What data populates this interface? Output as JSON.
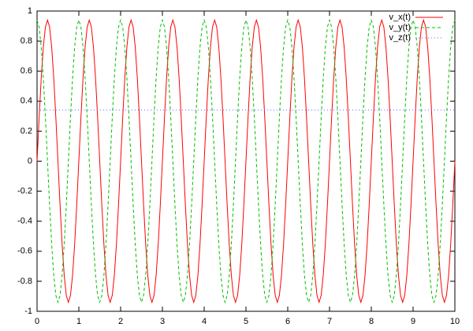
{
  "chart_data": {
    "type": "line",
    "x": [
      0,
      0.05,
      0.1,
      0.15,
      0.2,
      0.25,
      0.3,
      0.35,
      0.4,
      0.45,
      0.5,
      0.55,
      0.6,
      0.65,
      0.7,
      0.75,
      0.8,
      0.85,
      0.9,
      0.95,
      1,
      1.05,
      1.1,
      1.15,
      1.2,
      1.25,
      1.3,
      1.35,
      1.4,
      1.45,
      1.5,
      1.55,
      1.6,
      1.65,
      1.7,
      1.75,
      1.8,
      1.85,
      1.9,
      1.95,
      2,
      2.05,
      2.1,
      2.15,
      2.2,
      2.25,
      2.3,
      2.35,
      2.4,
      2.45,
      2.5,
      2.55,
      2.6,
      2.65,
      2.7,
      2.75,
      2.8,
      2.85,
      2.9,
      2.95,
      3,
      3.05,
      3.1,
      3.15,
      3.2,
      3.25,
      3.3,
      3.35,
      3.4,
      3.45,
      3.5,
      3.55,
      3.6,
      3.65,
      3.7,
      3.75,
      3.8,
      3.85,
      3.9,
      3.95,
      4,
      4.05,
      4.1,
      4.15,
      4.2,
      4.25,
      4.3,
      4.35,
      4.4,
      4.45,
      4.5,
      4.55,
      4.6,
      4.65,
      4.7,
      4.75,
      4.8,
      4.85,
      4.9,
      4.95,
      5,
      5.05,
      5.1,
      5.15,
      5.2,
      5.25,
      5.3,
      5.35,
      5.4,
      5.45,
      5.5,
      5.55,
      5.6,
      5.65,
      5.7,
      5.75,
      5.8,
      5.85,
      5.9,
      5.95,
      6,
      6.05,
      6.1,
      6.15,
      6.2,
      6.25,
      6.3,
      6.35,
      6.4,
      6.45,
      6.5,
      6.55,
      6.6,
      6.65,
      6.7,
      6.75,
      6.8,
      6.85,
      6.9,
      6.95,
      7,
      7.05,
      7.1,
      7.15,
      7.2,
      7.25,
      7.3,
      7.35,
      7.4,
      7.45,
      7.5,
      7.55,
      7.6,
      7.65,
      7.7,
      7.75,
      7.8,
      7.85,
      7.9,
      7.95,
      8,
      8.05,
      8.1,
      8.15,
      8.2,
      8.25,
      8.3,
      8.35,
      8.4,
      8.45,
      8.5,
      8.55,
      8.6,
      8.65,
      8.7,
      8.75,
      8.8,
      8.85,
      8.9,
      8.95,
      9,
      9.05,
      9.1,
      9.15,
      9.2,
      9.25,
      9.3,
      9.35,
      9.4,
      9.45,
      9.5,
      9.55,
      9.6,
      9.65,
      9.7,
      9.75,
      9.8,
      9.85,
      9.9,
      9.95,
      10
    ],
    "series": [
      {
        "name": "v_x(t)",
        "color": "#ff0000",
        "values": [
          0,
          0.29,
          0.553,
          0.76,
          0.894,
          0.94,
          0.894,
          0.76,
          0.553,
          0.29,
          0,
          -0.29,
          -0.553,
          -0.76,
          -0.894,
          -0.94,
          -0.894,
          -0.76,
          -0.553,
          -0.29,
          0,
          0.29,
          0.553,
          0.76,
          0.894,
          0.94,
          0.894,
          0.76,
          0.553,
          0.29,
          0,
          -0.29,
          -0.553,
          -0.76,
          -0.894,
          -0.94,
          -0.894,
          -0.76,
          -0.553,
          -0.29,
          0,
          0.29,
          0.553,
          0.76,
          0.894,
          0.94,
          0.894,
          0.76,
          0.553,
          0.29,
          0,
          -0.29,
          -0.553,
          -0.76,
          -0.894,
          -0.94,
          -0.894,
          -0.76,
          -0.553,
          -0.29,
          0,
          0.29,
          0.553,
          0.76,
          0.894,
          0.94,
          0.894,
          0.76,
          0.553,
          0.29,
          0,
          -0.29,
          -0.553,
          -0.76,
          -0.894,
          -0.94,
          -0.894,
          -0.76,
          -0.553,
          -0.29,
          0,
          0.29,
          0.553,
          0.76,
          0.894,
          0.94,
          0.894,
          0.76,
          0.553,
          0.29,
          0,
          -0.29,
          -0.553,
          -0.76,
          -0.894,
          -0.94,
          -0.894,
          -0.76,
          -0.553,
          -0.29,
          0,
          0.29,
          0.553,
          0.76,
          0.894,
          0.94,
          0.894,
          0.76,
          0.553,
          0.29,
          0,
          -0.29,
          -0.553,
          -0.76,
          -0.894,
          -0.94,
          -0.894,
          -0.76,
          -0.553,
          -0.29,
          0,
          0.29,
          0.553,
          0.76,
          0.894,
          0.94,
          0.894,
          0.76,
          0.553,
          0.29,
          0,
          -0.29,
          -0.553,
          -0.76,
          -0.894,
          -0.94,
          -0.894,
          -0.76,
          -0.553,
          -0.29,
          0,
          0.29,
          0.553,
          0.76,
          0.894,
          0.94,
          0.894,
          0.76,
          0.553,
          0.29,
          0,
          -0.29,
          -0.553,
          -0.76,
          -0.894,
          -0.94,
          -0.894,
          -0.76,
          -0.553,
          -0.29,
          0,
          0.29,
          0.553,
          0.76,
          0.894,
          0.94,
          0.894,
          0.76,
          0.553,
          0.29,
          0,
          -0.29,
          -0.553,
          -0.76,
          -0.894,
          -0.94,
          -0.894,
          -0.76,
          -0.553,
          -0.29,
          0,
          0.29,
          0.553,
          0.76,
          0.894,
          0.94,
          0.894,
          0.76,
          0.553,
          0.29,
          0,
          -0.29,
          -0.553,
          -0.76,
          -0.894,
          -0.94,
          -0.894,
          -0.76,
          -0.553,
          -0.29,
          0
        ]
      },
      {
        "name": "v_y(t)",
        "color": "#00c000",
        "values": [
          0.94,
          0.894,
          0.76,
          0.553,
          0.29,
          0,
          -0.29,
          -0.553,
          -0.76,
          -0.894,
          -0.94,
          -0.894,
          -0.76,
          -0.553,
          -0.29,
          0,
          0.29,
          0.553,
          0.76,
          0.894,
          0.94,
          0.894,
          0.76,
          0.553,
          0.29,
          0,
          -0.29,
          -0.553,
          -0.76,
          -0.894,
          -0.94,
          -0.894,
          -0.76,
          -0.553,
          -0.29,
          0,
          0.29,
          0.553,
          0.76,
          0.894,
          0.94,
          0.894,
          0.76,
          0.553,
          0.29,
          0,
          -0.29,
          -0.553,
          -0.76,
          -0.894,
          -0.94,
          -0.894,
          -0.76,
          -0.553,
          -0.29,
          0,
          0.29,
          0.553,
          0.76,
          0.894,
          0.94,
          0.894,
          0.76,
          0.553,
          0.29,
          0,
          -0.29,
          -0.553,
          -0.76,
          -0.894,
          -0.94,
          -0.894,
          -0.76,
          -0.553,
          -0.29,
          0,
          0.29,
          0.553,
          0.76,
          0.894,
          0.94,
          0.894,
          0.76,
          0.553,
          0.29,
          0,
          -0.29,
          -0.553,
          -0.76,
          -0.894,
          -0.94,
          -0.894,
          -0.76,
          -0.553,
          -0.29,
          0,
          0.29,
          0.553,
          0.76,
          0.894,
          0.94,
          0.894,
          0.76,
          0.553,
          0.29,
          0,
          -0.29,
          -0.553,
          -0.76,
          -0.894,
          -0.94,
          -0.894,
          -0.76,
          -0.553,
          -0.29,
          0,
          0.29,
          0.553,
          0.76,
          0.894,
          0.94,
          0.894,
          0.76,
          0.553,
          0.29,
          0,
          -0.29,
          -0.553,
          -0.76,
          -0.894,
          -0.94,
          -0.894,
          -0.76,
          -0.553,
          -0.29,
          0,
          0.29,
          0.553,
          0.76,
          0.894,
          0.94,
          0.894,
          0.76,
          0.553,
          0.29,
          0,
          -0.29,
          -0.553,
          -0.76,
          -0.894,
          -0.94,
          -0.894,
          -0.76,
          -0.553,
          -0.29,
          0,
          0.29,
          0.553,
          0.76,
          0.894,
          0.94,
          0.894,
          0.76,
          0.553,
          0.29,
          0,
          -0.29,
          -0.553,
          -0.76,
          -0.894,
          -0.94,
          -0.894,
          -0.76,
          -0.553,
          -0.29,
          0,
          0.29,
          0.553,
          0.76,
          0.894,
          0.94,
          0.894,
          0.76,
          0.553,
          0.29,
          0,
          -0.29,
          -0.553,
          -0.76,
          -0.894,
          -0.94,
          -0.894,
          -0.76,
          -0.553,
          -0.29,
          0,
          0.29,
          0.553,
          0.76,
          0.894,
          0.94
        ]
      },
      {
        "name": "v_z(t)",
        "color": "#6060ff",
        "x": [
          0,
          10
        ],
        "values": [
          0.34,
          0.34
        ]
      }
    ],
    "xlim": [
      0,
      10
    ],
    "xticks": [
      0,
      1,
      2,
      3,
      4,
      5,
      6,
      7,
      8,
      9,
      10
    ],
    "ylim": [
      -1,
      1
    ],
    "yticks": [
      -1,
      -0.8,
      -0.6,
      -0.4,
      -0.2,
      0,
      0.2,
      0.4,
      0.6,
      0.8,
      1
    ],
    "grid": false,
    "legend": "top-right"
  }
}
